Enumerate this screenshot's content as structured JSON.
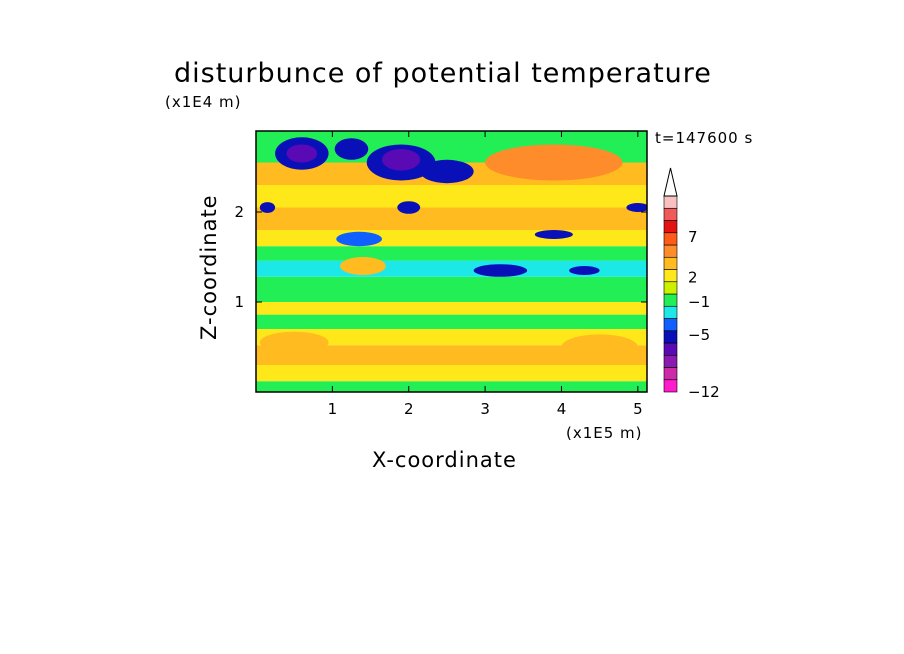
{
  "chart_data": {
    "type": "heatmap",
    "title": "disturbunce of potential temperature",
    "xlabel": "X-coordinate",
    "ylabel": "Z-coordinate",
    "x_unit": "(x1E5 m)",
    "z_unit": "(x1E4 m)",
    "timestamp": "t=147600 s",
    "xlim": [
      0,
      5.12
    ],
    "ylim": [
      0,
      2.9
    ],
    "x_ticks": [
      "1",
      "2",
      "3",
      "4",
      "5"
    ],
    "x_tick_values": [
      1,
      2,
      3,
      4,
      5
    ],
    "y_ticks": [
      "1",
      "2"
    ],
    "y_tick_values": [
      1,
      2
    ],
    "colorbar": {
      "labels": [
        "7",
        "2",
        "−1",
        "−5",
        "−12"
      ],
      "label_values": [
        7,
        2,
        -1,
        -5,
        -12
      ],
      "extend_arrow": "top",
      "colors_bottom_to_top": [
        "#ff1acc",
        "#cc2aa6",
        "#8a1ab0",
        "#5a0ab4",
        "#0a10b8",
        "#1060ff",
        "#1ce8e8",
        "#22ee55",
        "#ccf000",
        "#ffe81a",
        "#ffbb20",
        "#ff8c2a",
        "#ff5a1a",
        "#e61212",
        "#f05a5a",
        "#f8c0c0"
      ]
    },
    "field_note_colors": {
      "neg_strong": "#5a0ab4",
      "neg": "#0a10b8",
      "neg_light": "#1060ff",
      "near_zero": "#1ce8e8",
      "small_pos": "#22ee55",
      "pos": "#ffe81a",
      "pos_mid": "#ffbb20",
      "pos_high": "#ff8c2a"
    }
  }
}
